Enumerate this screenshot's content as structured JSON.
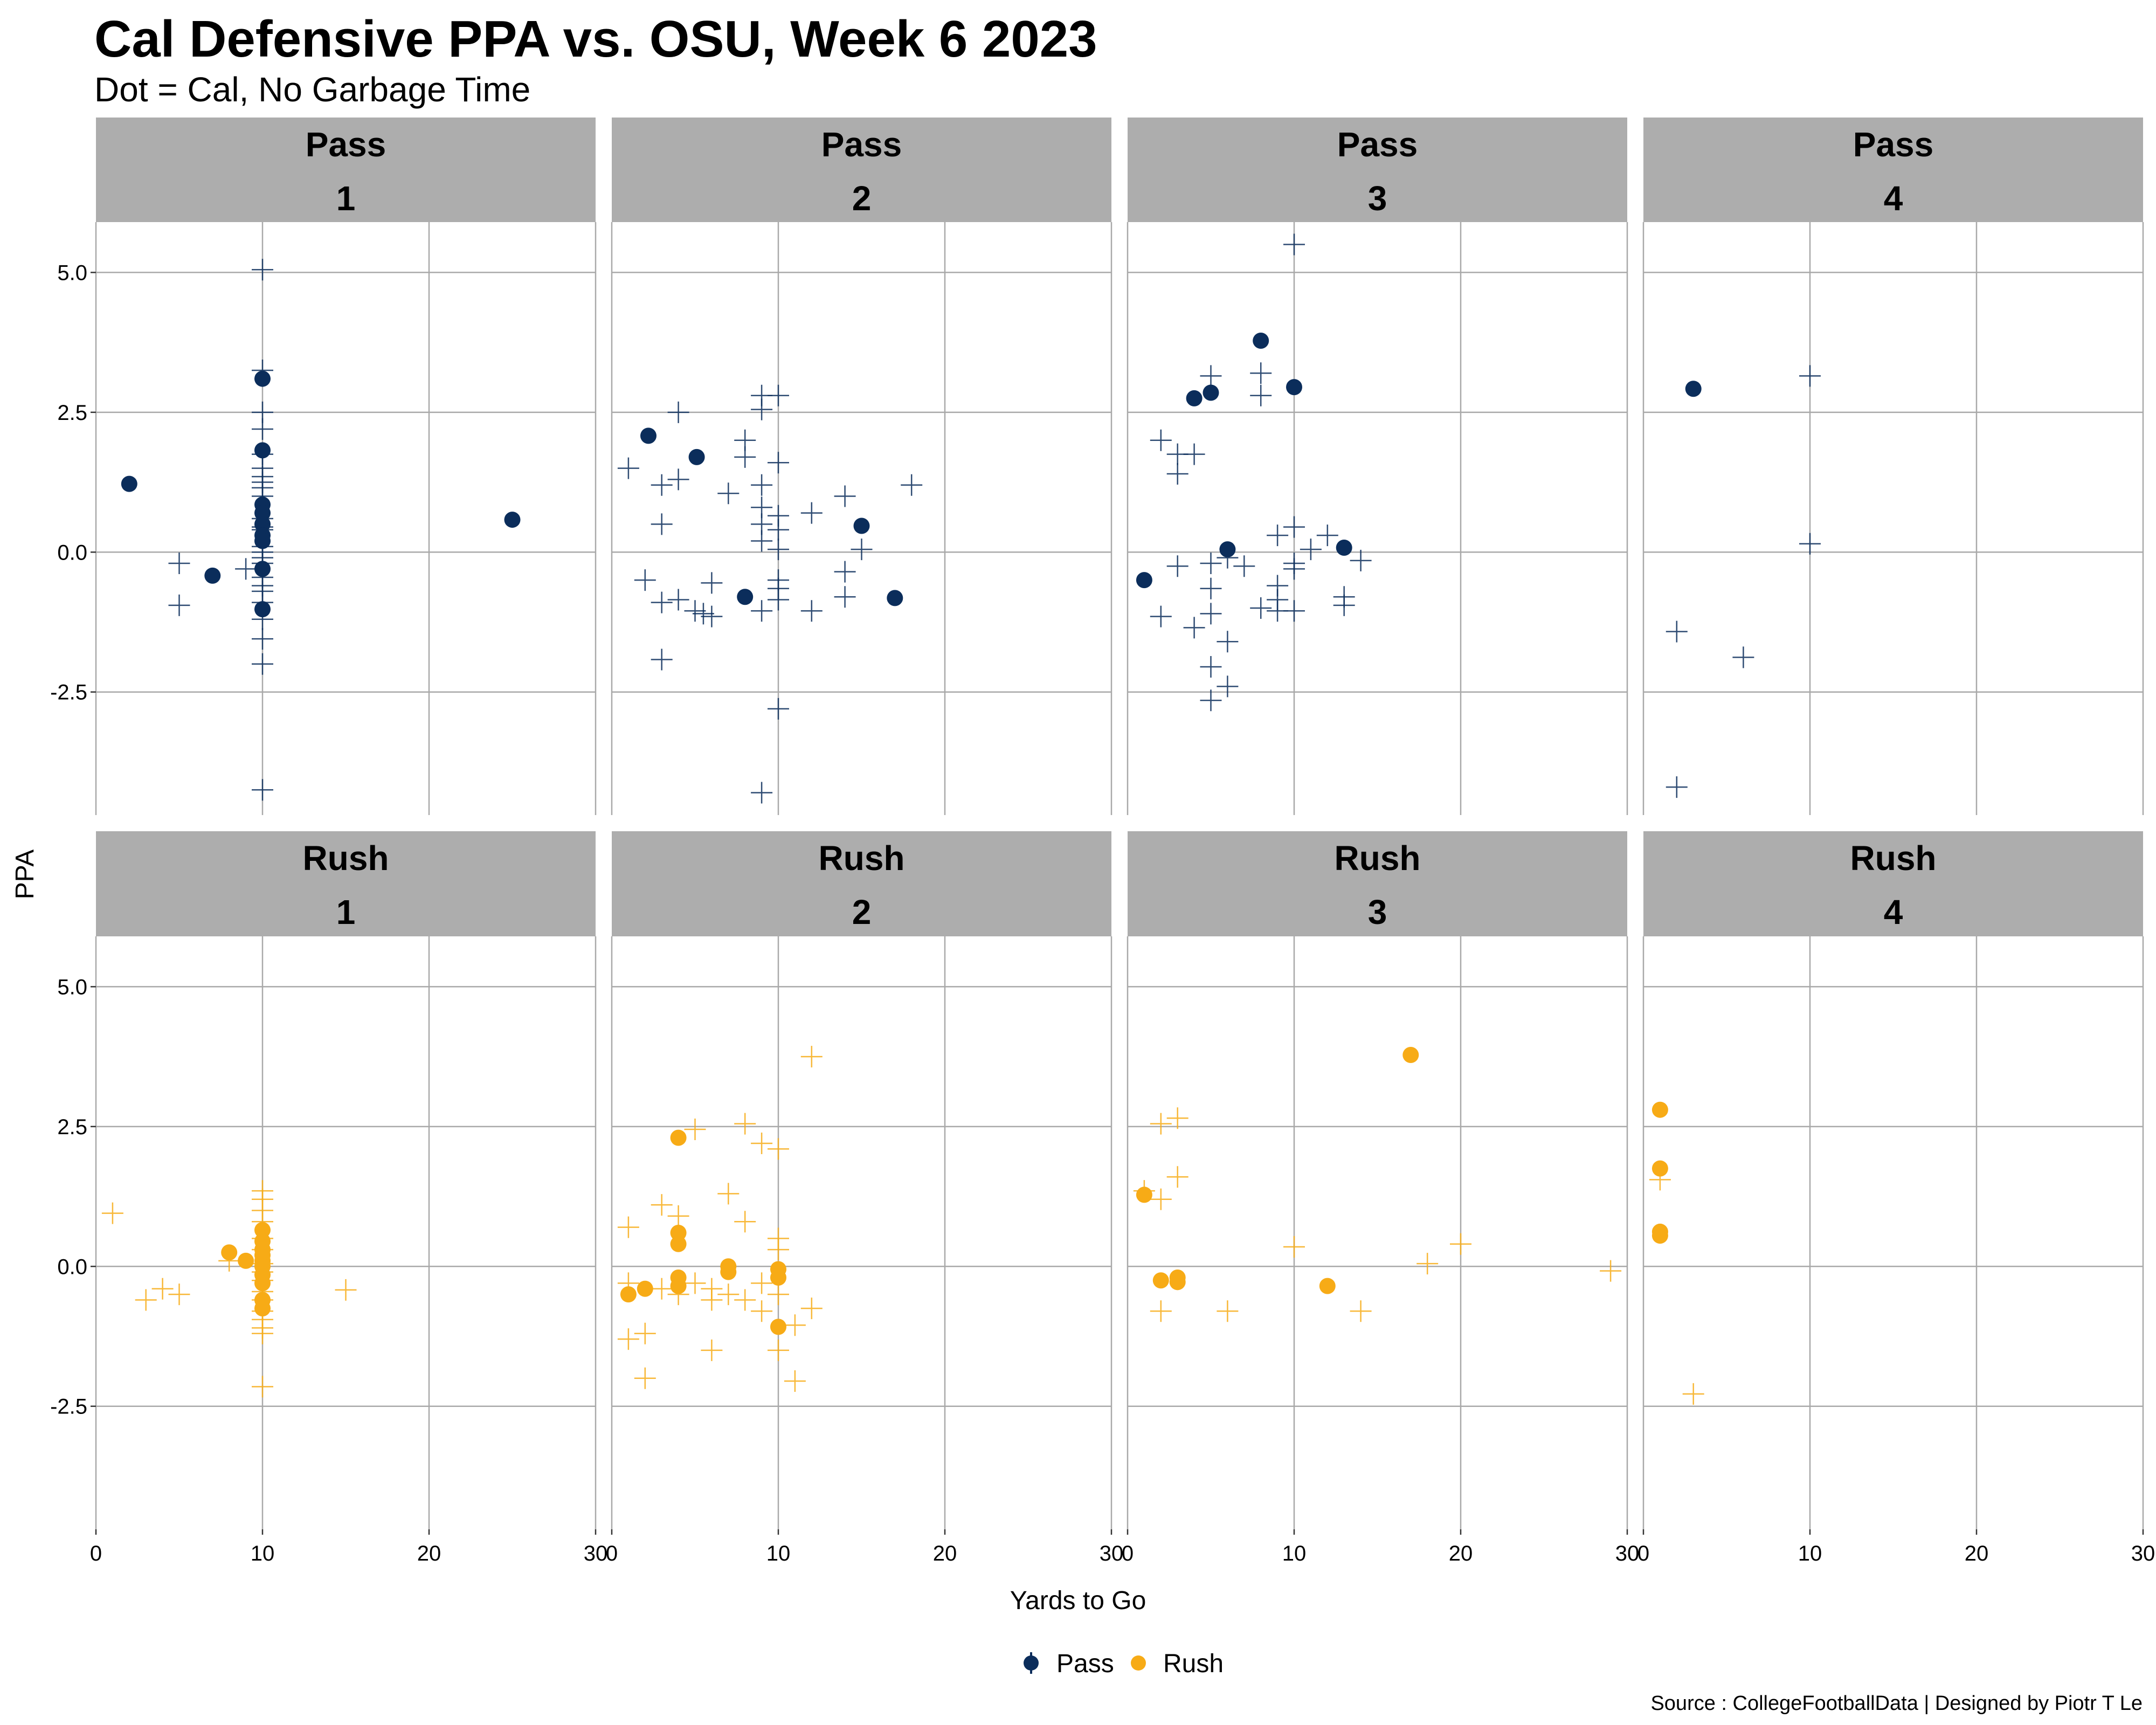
{
  "chart_data": {
    "type": "scatter",
    "title": "Cal Defensive PPA vs. OSU, Week 6 2023",
    "subtitle": "Dot = Cal, No Garbage Time",
    "xlabel": "Yards to Go",
    "ylabel": "PPA",
    "caption": "Source : CollegeFootballData | Designed by Piotr T Le",
    "xlim": [
      0,
      30
    ],
    "ylim": [
      -4.7,
      5.9
    ],
    "xticks": [
      0,
      10,
      20,
      30
    ],
    "xtick_labels": [
      "0",
      "10",
      "20",
      "30"
    ],
    "yticks": [
      5.0,
      2.5,
      0.0,
      -2.5
    ],
    "ytick_labels": [
      "5.0",
      "2.5",
      "0.0",
      "-2.5"
    ],
    "legend": {
      "position": "bottom",
      "items": [
        {
          "label": "Pass",
          "color": "#0b2d5b"
        },
        {
          "label": "Rush",
          "color": "#f7ab16"
        }
      ]
    },
    "colors": {
      "Pass": "#0b2d5b",
      "Rush": "#f7ab16",
      "strip": "#adadad"
    },
    "panels": [
      {
        "play_type": "Pass",
        "down": "1",
        "cal": [
          [
            2,
            1.22
          ],
          [
            7,
            -0.42
          ],
          [
            10,
            3.1
          ],
          [
            10,
            1.82
          ],
          [
            10,
            0.85
          ],
          [
            10,
            0.7
          ],
          [
            10,
            0.5
          ],
          [
            10,
            0.3
          ],
          [
            10,
            0.2
          ],
          [
            10,
            -0.3
          ],
          [
            10,
            -1.02
          ],
          [
            25,
            0.58
          ]
        ],
        "osu": [
          [
            5,
            -0.2
          ],
          [
            5,
            -0.95
          ],
          [
            9,
            -0.3
          ],
          [
            10,
            5.05
          ],
          [
            10,
            3.25
          ],
          [
            10,
            2.5
          ],
          [
            10,
            2.2
          ],
          [
            10,
            1.75
          ],
          [
            10,
            1.5
          ],
          [
            10,
            1.35
          ],
          [
            10,
            1.25
          ],
          [
            10,
            1.15
          ],
          [
            10,
            1.0
          ],
          [
            10,
            0.6
          ],
          [
            10,
            0.45
          ],
          [
            10,
            0.4
          ],
          [
            10,
            0.1
          ],
          [
            10,
            0.0
          ],
          [
            10,
            -0.1
          ],
          [
            10,
            -0.2
          ],
          [
            10,
            -0.45
          ],
          [
            10,
            -0.6
          ],
          [
            10,
            -0.7
          ],
          [
            10,
            -0.9
          ],
          [
            10,
            -1.2
          ],
          [
            10,
            -1.55
          ],
          [
            10,
            -2.0
          ],
          [
            10,
            -4.25
          ]
        ]
      },
      {
        "play_type": "Pass",
        "down": "2",
        "cal": [
          [
            2.2,
            2.08
          ],
          [
            5.1,
            1.7
          ],
          [
            8,
            -0.8
          ],
          [
            15,
            0.47
          ],
          [
            17,
            -0.82
          ]
        ],
        "osu": [
          [
            1,
            1.5
          ],
          [
            2,
            -0.5
          ],
          [
            3,
            1.2
          ],
          [
            3,
            0.5
          ],
          [
            3,
            -0.9
          ],
          [
            3,
            -1.92
          ],
          [
            4,
            2.5
          ],
          [
            4,
            1.3
          ],
          [
            4,
            -0.85
          ],
          [
            5,
            -1.05
          ],
          [
            5.5,
            -1.1
          ],
          [
            6,
            -0.55
          ],
          [
            6,
            -1.15
          ],
          [
            7,
            1.05
          ],
          [
            8,
            2.0
          ],
          [
            8,
            1.7
          ],
          [
            9,
            2.8
          ],
          [
            9,
            2.55
          ],
          [
            9,
            1.2
          ],
          [
            9,
            0.8
          ],
          [
            9,
            0.5
          ],
          [
            9,
            0.2
          ],
          [
            9,
            -1.05
          ],
          [
            9,
            -4.3
          ],
          [
            10,
            2.8
          ],
          [
            10,
            1.6
          ],
          [
            10,
            0.65
          ],
          [
            10,
            0.4
          ],
          [
            10,
            0.05
          ],
          [
            10,
            -0.5
          ],
          [
            10,
            -0.65
          ],
          [
            10,
            -0.85
          ],
          [
            10,
            -2.8
          ],
          [
            12,
            0.7
          ],
          [
            12,
            -1.05
          ],
          [
            14,
            1.0
          ],
          [
            14,
            -0.35
          ],
          [
            14,
            -0.8
          ],
          [
            15,
            0.05
          ],
          [
            18,
            1.2
          ]
        ]
      },
      {
        "play_type": "Pass",
        "down": "3",
        "cal": [
          [
            1,
            -0.5
          ],
          [
            4,
            2.75
          ],
          [
            5,
            2.85
          ],
          [
            6,
            0.05
          ],
          [
            8,
            3.78
          ],
          [
            10,
            2.95
          ],
          [
            13,
            0.08
          ]
        ],
        "osu": [
          [
            2,
            2.0
          ],
          [
            2,
            -1.15
          ],
          [
            3,
            1.75
          ],
          [
            3,
            1.4
          ],
          [
            3,
            -0.25
          ],
          [
            4,
            1.75
          ],
          [
            4,
            -1.35
          ],
          [
            5,
            3.15
          ],
          [
            5,
            -0.2
          ],
          [
            5,
            -0.65
          ],
          [
            5,
            -1.1
          ],
          [
            5,
            -2.05
          ],
          [
            5,
            -2.65
          ],
          [
            6,
            -0.1
          ],
          [
            6,
            -1.6
          ],
          [
            6,
            -2.4
          ],
          [
            7,
            -0.25
          ],
          [
            8,
            3.2
          ],
          [
            8,
            2.8
          ],
          [
            8,
            -1.0
          ],
          [
            9,
            0.3
          ],
          [
            9,
            -0.6
          ],
          [
            9,
            -0.85
          ],
          [
            9,
            -1.05
          ],
          [
            10,
            5.5
          ],
          [
            10,
            0.45
          ],
          [
            10,
            -0.2
          ],
          [
            10,
            -0.3
          ],
          [
            10,
            -1.05
          ],
          [
            11,
            0.05
          ],
          [
            12,
            0.3
          ],
          [
            13,
            -0.8
          ],
          [
            13,
            -0.95
          ],
          [
            14,
            -0.15
          ]
        ]
      },
      {
        "play_type": "Pass",
        "down": "4",
        "cal": [
          [
            3,
            2.92
          ]
        ],
        "osu": [
          [
            10,
            3.15
          ],
          [
            10,
            0.15
          ],
          [
            2,
            -1.42
          ],
          [
            6,
            -1.88
          ],
          [
            2,
            -4.2
          ]
        ]
      },
      {
        "play_type": "Rush",
        "down": "1",
        "cal": [
          [
            8,
            0.25
          ],
          [
            9,
            0.1
          ],
          [
            10,
            0.65
          ],
          [
            10,
            0.45
          ],
          [
            10,
            0.3
          ],
          [
            10,
            0.2
          ],
          [
            10,
            0.1
          ],
          [
            10,
            0.0
          ],
          [
            10,
            -0.15
          ],
          [
            10,
            -0.3
          ],
          [
            10,
            -0.6
          ],
          [
            10,
            -0.75
          ]
        ],
        "osu": [
          [
            1,
            0.95
          ],
          [
            3,
            -0.6
          ],
          [
            4,
            -0.4
          ],
          [
            5,
            -0.5
          ],
          [
            8,
            0.1
          ],
          [
            10,
            1.35
          ],
          [
            10,
            1.2
          ],
          [
            10,
            1.0
          ],
          [
            10,
            0.8
          ],
          [
            10,
            0.5
          ],
          [
            10,
            0.3
          ],
          [
            10,
            0.05
          ],
          [
            10,
            -0.1
          ],
          [
            10,
            -0.25
          ],
          [
            10,
            -0.45
          ],
          [
            10,
            -0.6
          ],
          [
            10,
            -0.8
          ],
          [
            10,
            -0.95
          ],
          [
            10,
            -1.1
          ],
          [
            10,
            -1.2
          ],
          [
            10,
            -2.15
          ],
          [
            15,
            -0.42
          ]
        ]
      },
      {
        "play_type": "Rush",
        "down": "2",
        "cal": [
          [
            1,
            -0.5
          ],
          [
            2,
            -0.4
          ],
          [
            4,
            2.3
          ],
          [
            4,
            0.6
          ],
          [
            4,
            0.4
          ],
          [
            4,
            -0.2
          ],
          [
            4,
            -0.35
          ],
          [
            7,
            0.0
          ],
          [
            7,
            -0.1
          ],
          [
            10,
            -0.05
          ],
          [
            10,
            -0.2
          ],
          [
            10,
            -1.08
          ]
        ],
        "osu": [
          [
            1,
            0.7
          ],
          [
            1,
            -0.3
          ],
          [
            1,
            -1.3
          ],
          [
            2,
            -1.2
          ],
          [
            2,
            -2.0
          ],
          [
            3,
            1.1
          ],
          [
            3,
            -0.4
          ],
          [
            4,
            0.9
          ],
          [
            4,
            -0.5
          ],
          [
            5,
            2.45
          ],
          [
            5,
            -0.3
          ],
          [
            6,
            -0.4
          ],
          [
            6,
            -0.6
          ],
          [
            6,
            -1.5
          ],
          [
            7,
            1.3
          ],
          [
            7,
            -0.5
          ],
          [
            8,
            2.55
          ],
          [
            8,
            0.8
          ],
          [
            8,
            -0.6
          ],
          [
            9,
            2.2
          ],
          [
            9,
            -0.3
          ],
          [
            9,
            -0.8
          ],
          [
            10,
            2.1
          ],
          [
            10,
            0.5
          ],
          [
            10,
            0.3
          ],
          [
            10,
            -0.5
          ],
          [
            10,
            -1.5
          ],
          [
            11,
            -1.05
          ],
          [
            11,
            -2.05
          ],
          [
            12,
            3.75
          ],
          [
            12,
            -0.75
          ]
        ]
      },
      {
        "play_type": "Rush",
        "down": "3",
        "cal": [
          [
            1,
            1.28
          ],
          [
            2,
            -0.25
          ],
          [
            3,
            -0.2
          ],
          [
            3,
            -0.28
          ],
          [
            12,
            -0.35
          ],
          [
            17,
            3.78
          ]
        ],
        "osu": [
          [
            1,
            1.35
          ],
          [
            2,
            2.55
          ],
          [
            2,
            1.2
          ],
          [
            2,
            -0.8
          ],
          [
            3,
            2.65
          ],
          [
            3,
            1.6
          ],
          [
            6,
            -0.8
          ],
          [
            10,
            0.35
          ],
          [
            14,
            -0.8
          ],
          [
            18,
            0.05
          ],
          [
            20,
            0.4
          ],
          [
            29,
            -0.08
          ]
        ]
      },
      {
        "play_type": "Rush",
        "down": "4",
        "cal": [
          [
            1,
            2.8
          ],
          [
            1,
            1.75
          ],
          [
            1,
            0.62
          ],
          [
            1,
            0.55
          ]
        ],
        "osu": [
          [
            1,
            1.55
          ],
          [
            3,
            -2.28
          ]
        ]
      }
    ]
  }
}
